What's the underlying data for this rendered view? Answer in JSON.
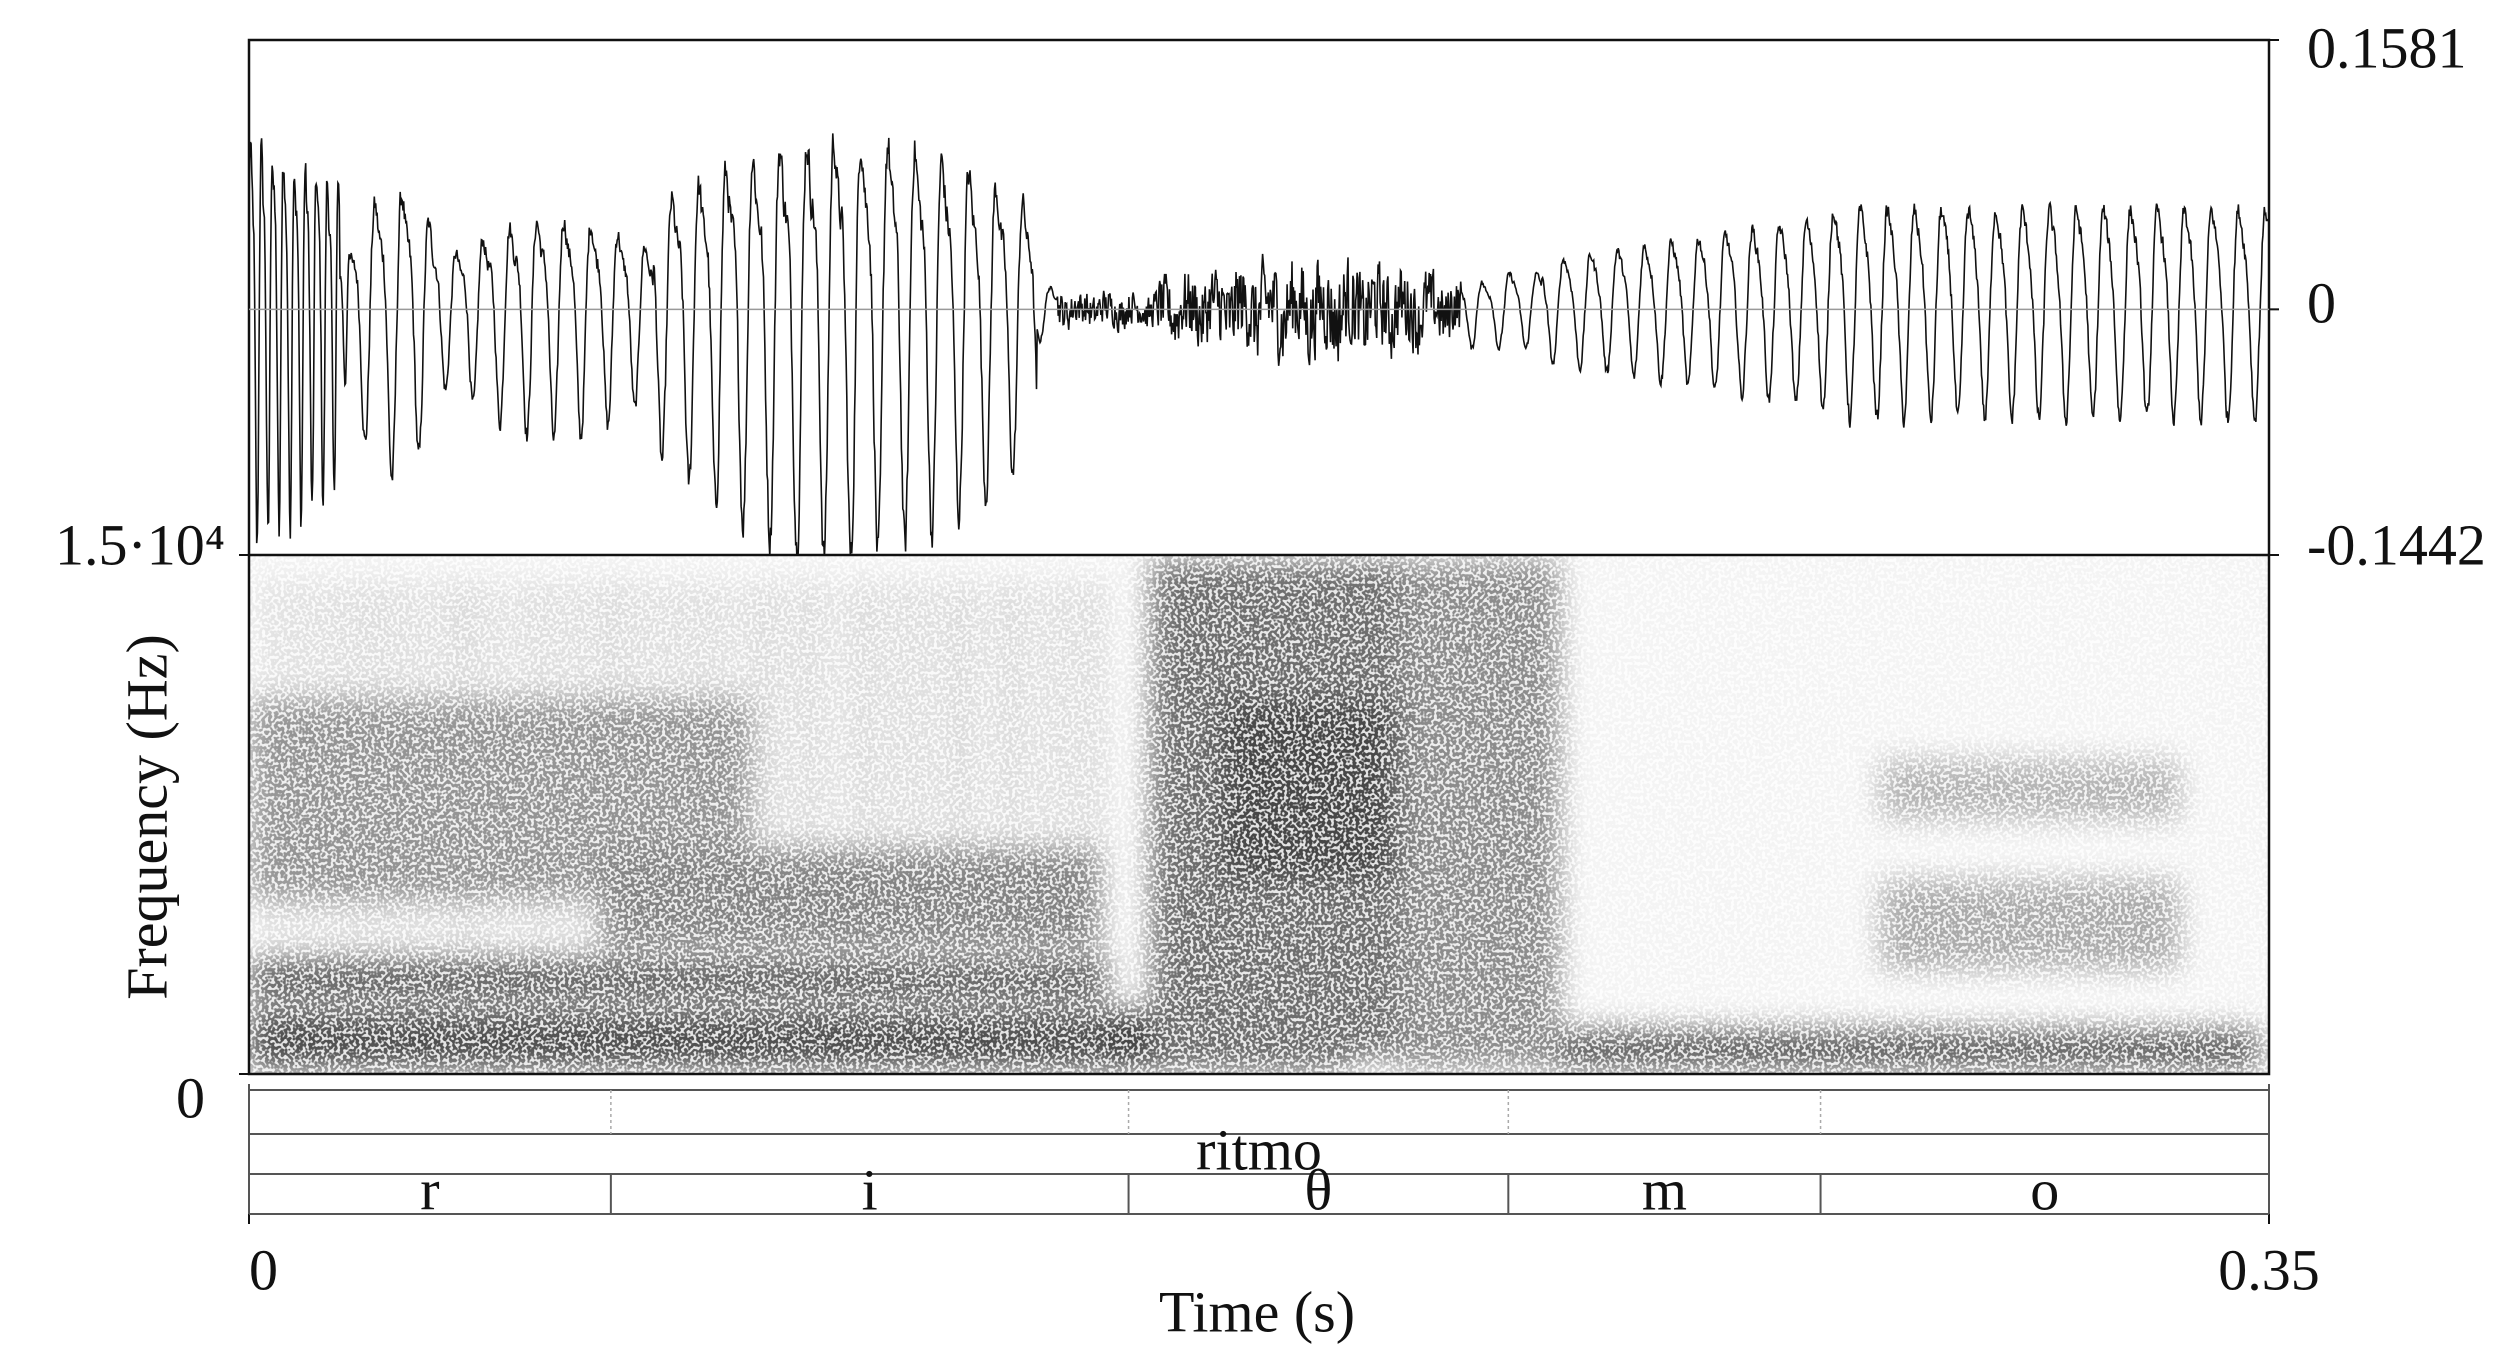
{
  "chart_data": [
    {
      "type": "waveform",
      "xlim": [
        0,
        0.35
      ],
      "ylim": [
        -0.1442,
        0.1581
      ],
      "yticks": [
        -0.1442,
        0,
        0.1581
      ]
    },
    {
      "type": "spectrogram",
      "ylabel": "Frequency (Hz)",
      "xlabel": "Time (s)",
      "xlim": [
        0,
        0.35
      ],
      "xticks": [
        0,
        0.35
      ],
      "ylim": [
        0,
        15000
      ],
      "yticks": [
        0,
        {
          "value": 15000,
          "label": "1.5·10⁴"
        }
      ]
    }
  ],
  "textgrid": {
    "tiers": [
      {
        "intervals": [
          {
            "start": 0,
            "end": 0.35,
            "label": "ritmo"
          }
        ]
      },
      {
        "intervals": [
          {
            "start": 0,
            "end": 0.0627,
            "label": "r"
          },
          {
            "start": 0.0627,
            "end": 0.1524,
            "label": "i"
          },
          {
            "start": 0.1524,
            "end": 0.2182,
            "label": "θ"
          },
          {
            "start": 0.2182,
            "end": 0.2723,
            "label": "m"
          },
          {
            "start": 0.2723,
            "end": 0.35,
            "label": "o"
          }
        ]
      }
    ]
  }
}
